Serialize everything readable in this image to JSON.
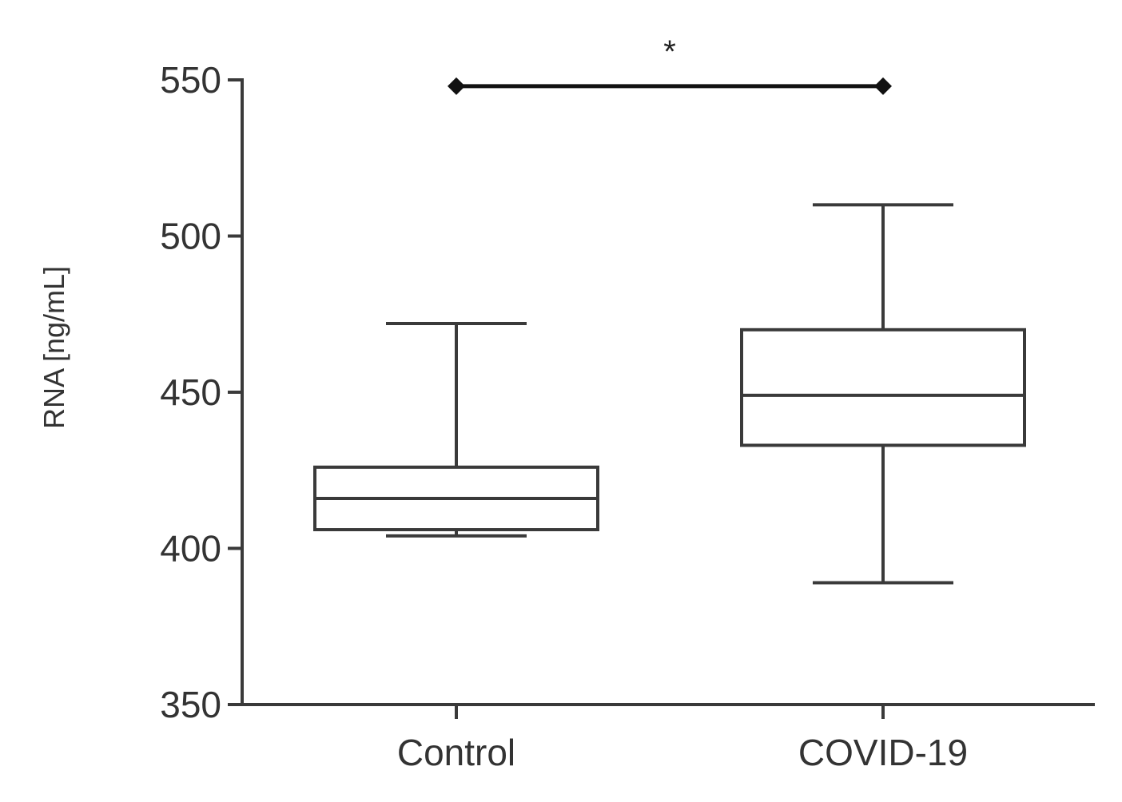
{
  "chart_data": {
    "type": "box",
    "ylabel": "RNA [ng/mL]",
    "xlabel": "",
    "ylim": [
      350,
      550
    ],
    "yticks": [
      350,
      400,
      450,
      500,
      550
    ],
    "yticks_labels": [
      "350",
      "400",
      "450",
      "500",
      "550"
    ],
    "grid": false,
    "categories": [
      "Control",
      "COVID-19"
    ],
    "boxes": [
      {
        "category": "Control",
        "whisker_low": 404,
        "q1": 406,
        "median": 416,
        "q3": 426,
        "whisker_high": 472
      },
      {
        "category": "COVID-19",
        "whisker_low": 389,
        "q1": 433,
        "median": 449,
        "q3": 470,
        "whisker_high": 510
      }
    ],
    "significance": {
      "from": "Control",
      "to": "COVID-19",
      "y": 548,
      "label": "*"
    },
    "colors": {
      "stroke": "#3a3a3a",
      "text": "#333333"
    }
  }
}
